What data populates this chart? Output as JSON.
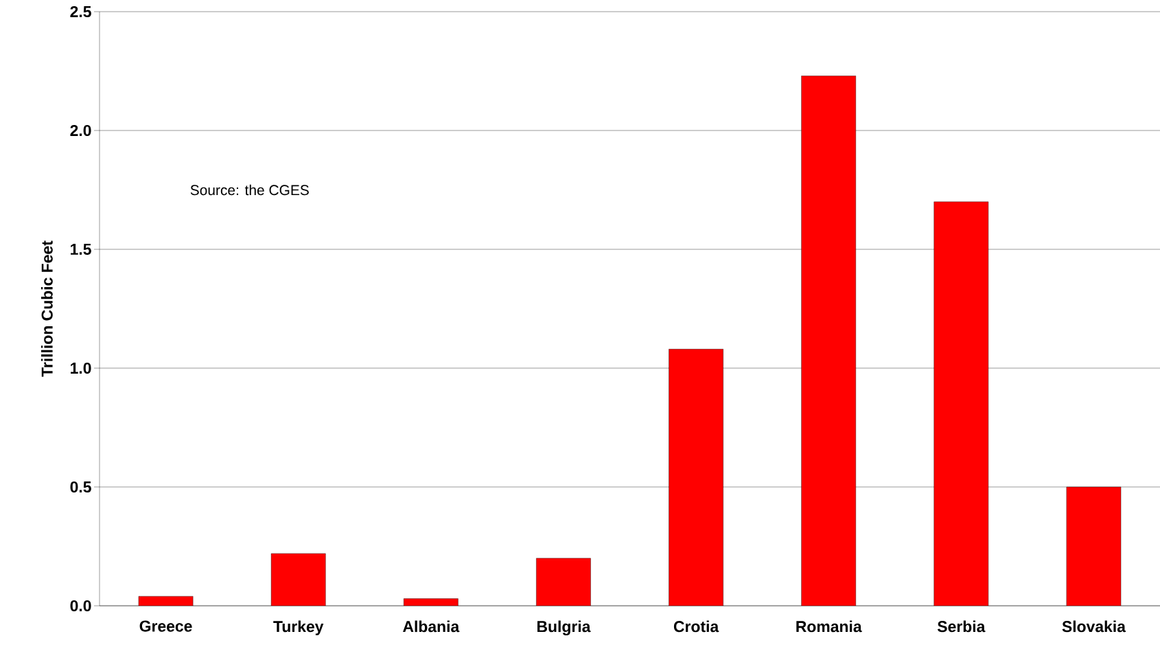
{
  "chart_data": {
    "type": "bar",
    "ylabel": "Trillion Cubic Feet",
    "categories": [
      "Greece",
      "Turkey",
      "Albania",
      "Bulgria",
      "Crotia",
      "Romania",
      "Serbia",
      "Slovakia"
    ],
    "values": [
      0.04,
      0.22,
      0.03,
      0.2,
      1.08,
      2.23,
      1.7,
      0.5
    ],
    "color": "#ff0000",
    "ylim": [
      0,
      2.5
    ],
    "yticks": [
      {
        "value": 0,
        "label": "0.0"
      },
      {
        "value": 0.5,
        "label": "0.5"
      },
      {
        "value": 1,
        "label": "1.0"
      },
      {
        "value": 1.5,
        "label": "1.5"
      },
      {
        "value": 2,
        "label": "2.0"
      },
      {
        "value": 2.5,
        "label": "2.5"
      }
    ],
    "grid": "y",
    "annotations": [
      "Source: the CGES"
    ]
  }
}
